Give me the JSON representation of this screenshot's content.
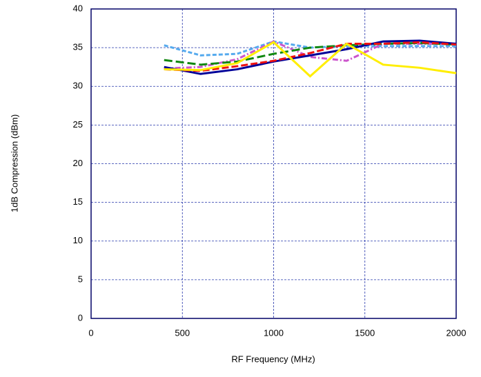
{
  "chart_data": {
    "type": "line",
    "xlabel": "RF Frequency (MHz)",
    "ylabel": "1dB Compression (dBm)",
    "x": [
      400,
      600,
      800,
      1000,
      1200,
      1400,
      1600,
      1800,
      2000
    ],
    "series": [
      {
        "color": "#55aaee",
        "dash": "6,3",
        "values": [
          35.3,
          34.0,
          34.2,
          35.8,
          35.0,
          35.2,
          35.2,
          35.2,
          35.2
        ]
      },
      {
        "color": "#cc55cc",
        "dash": "8,3,2,3",
        "values": [
          32.3,
          32.5,
          33.5,
          35.8,
          33.8,
          33.3,
          35.5,
          35.5,
          35.5
        ]
      },
      {
        "color": "#118811",
        "dash": "12,5",
        "values": [
          33.4,
          32.8,
          33.2,
          34.2,
          35.0,
          35.3,
          35.5,
          35.6,
          35.4
        ]
      },
      {
        "color": "#000099",
        "dash": "none",
        "values": [
          32.5,
          31.6,
          32.2,
          33.2,
          34.0,
          34.8,
          35.8,
          35.9,
          35.5
        ]
      },
      {
        "color": "#ee1111",
        "dash": "10,4",
        "values": [
          32.2,
          32.0,
          32.6,
          33.3,
          34.3,
          35.5,
          35.5,
          35.7,
          35.4
        ]
      },
      {
        "color": "#ffee00",
        "dash": "none",
        "values": [
          32.2,
          32.1,
          33.0,
          35.7,
          31.3,
          35.5,
          32.8,
          32.4,
          31.7
        ]
      }
    ],
    "xlim": [
      0,
      2000
    ],
    "xticks": [
      0,
      500,
      1000,
      1500,
      2000
    ],
    "ylim": [
      0,
      40
    ],
    "yticks": [
      0,
      5,
      10,
      15,
      20,
      25,
      30,
      35,
      40
    ],
    "grid": true
  }
}
